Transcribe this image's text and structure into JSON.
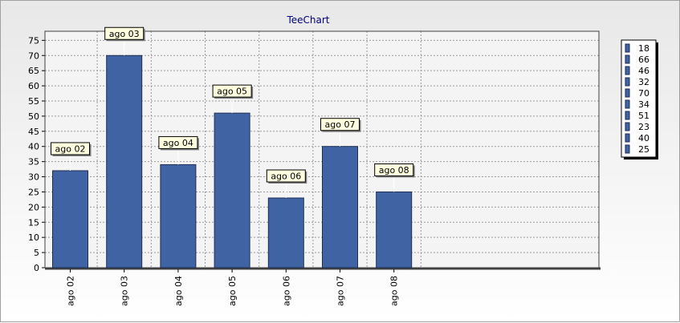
{
  "chart_data": {
    "type": "bar",
    "title": "TeeChart",
    "categories": [
      "ago 02",
      "ago 03",
      "ago 04",
      "ago 05",
      "ago 06",
      "ago 07",
      "ago 08"
    ],
    "values": [
      32,
      70,
      34,
      51,
      23,
      40,
      25
    ],
    "ylim": [
      0,
      78
    ],
    "yticks": [
      0,
      5,
      10,
      15,
      20,
      25,
      30,
      35,
      40,
      45,
      50,
      55,
      60,
      65,
      70,
      75
    ],
    "grid": true,
    "bar_color": "#4063a4",
    "legend": {
      "position": "right",
      "items": [
        "18",
        "66",
        "46",
        "32",
        "70",
        "34",
        "51",
        "23",
        "40",
        "25"
      ]
    }
  }
}
